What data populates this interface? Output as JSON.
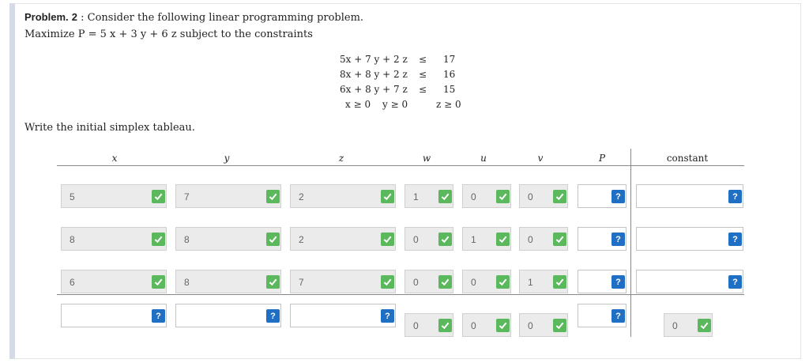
{
  "problem": {
    "label": "Problem.",
    "number": "2",
    "intro": ": Consider the following linear programming problem.",
    "objective": "Maximize P = 5 x + 3 y + 6 z subject to the constraints"
  },
  "constraints": [
    {
      "lhs": "5x + 7 y + 2 z",
      "op": "≤",
      "rhs": "17"
    },
    {
      "lhs": "8x + 8 y + 2 z",
      "op": "≤",
      "rhs": "16"
    },
    {
      "lhs": "6x + 8 y + 7 z",
      "op": "≤",
      "rhs": "15"
    }
  ],
  "nonneg": {
    "x": "x ≥ 0",
    "y": "y ≥ 0",
    "z": "z ≥ 0"
  },
  "instruction": "Write the initial simplex tableau.",
  "columns": [
    "x",
    "y",
    "z",
    "w",
    "u",
    "v",
    "P",
    "constant"
  ],
  "tableau": {
    "rows": [
      {
        "x": "5",
        "y": "7",
        "z": "2",
        "w": "1",
        "u": "0",
        "v": "0",
        "P": "",
        "constant": ""
      },
      {
        "x": "8",
        "y": "8",
        "z": "2",
        "w": "0",
        "u": "1",
        "v": "0",
        "P": "",
        "constant": ""
      },
      {
        "x": "6",
        "y": "8",
        "z": "7",
        "w": "0",
        "u": "0",
        "v": "1",
        "P": "",
        "constant": ""
      },
      {
        "x": "",
        "y": "",
        "z": "",
        "w": "0",
        "u": "0",
        "v": "0",
        "P": "",
        "constant": "0"
      }
    ]
  },
  "badges": {
    "correct": "check-icon",
    "unanswered": "?"
  },
  "colors": {
    "correct": "#5cb85c",
    "help": "#1f6fc4",
    "filled_bg": "#ebebeb"
  }
}
